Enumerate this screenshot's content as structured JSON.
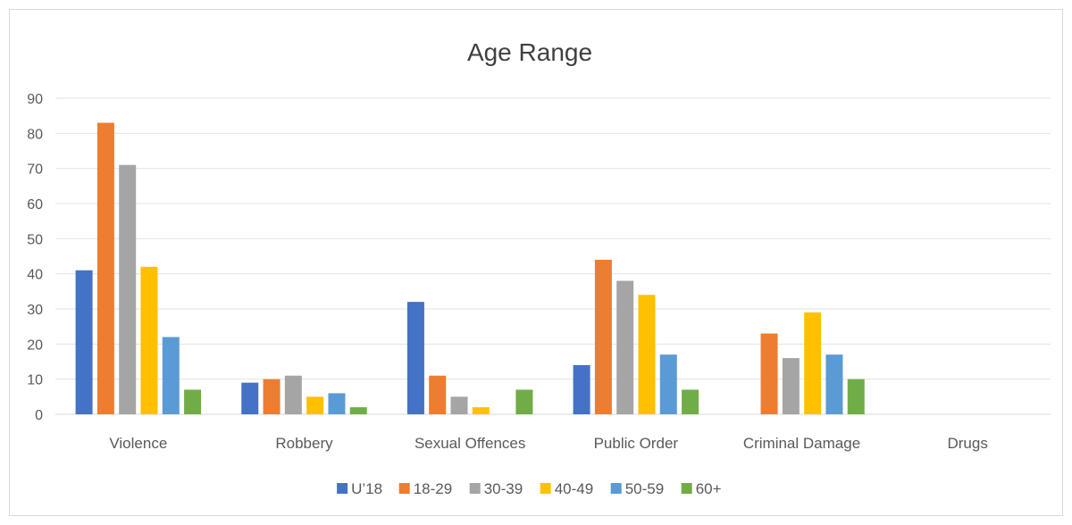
{
  "chart_data": {
    "type": "bar",
    "title": "Age Range",
    "xlabel": "",
    "ylabel": "",
    "ylim": [
      0,
      90
    ],
    "yticks": [
      0,
      10,
      20,
      30,
      40,
      50,
      60,
      70,
      80,
      90
    ],
    "grid": true,
    "legend_position": "bottom",
    "categories": [
      "Violence",
      "Robbery",
      "Sexual Offences",
      "Public Order",
      "Criminal Damage",
      "Drugs"
    ],
    "series": [
      {
        "name": "U’18",
        "color": "#4472c4",
        "values": [
          41,
          9,
          32,
          14,
          0,
          0
        ]
      },
      {
        "name": "18-29",
        "color": "#ed7d31",
        "values": [
          83,
          10,
          11,
          44,
          23,
          0
        ]
      },
      {
        "name": "30-39",
        "color": "#a5a5a5",
        "values": [
          71,
          11,
          5,
          38,
          16,
          0
        ]
      },
      {
        "name": "40-49",
        "color": "#ffc000",
        "values": [
          42,
          5,
          2,
          34,
          29,
          0
        ]
      },
      {
        "name": "50-59",
        "color": "#5b9bd5",
        "values": [
          22,
          6,
          0,
          17,
          17,
          0
        ]
      },
      {
        "name": "60+",
        "color": "#70ad47",
        "values": [
          7,
          2,
          7,
          7,
          10,
          0
        ]
      }
    ]
  }
}
